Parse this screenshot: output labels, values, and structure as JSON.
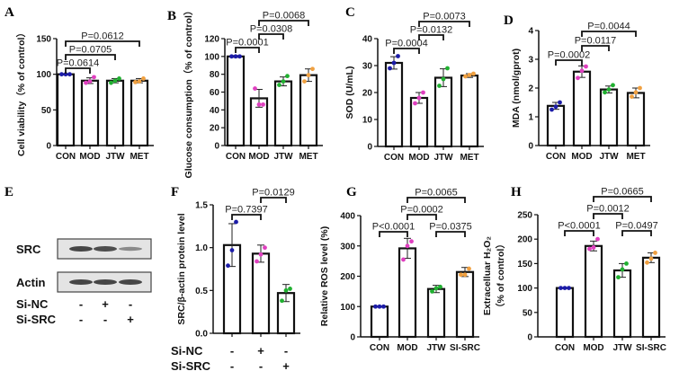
{
  "colors": {
    "CON": "#1c1ca8",
    "MOD": "#e040c0",
    "JTW": "#20b030",
    "MET": "#f0a040",
    "SI-SRC": "#f0a040",
    "bar_stroke": "#111111",
    "bar_fill": "#ffffff"
  },
  "blot": {
    "panel": "E",
    "rows": [
      "SRC",
      "Actin"
    ],
    "conditions": [
      {
        "label": "Si-NC",
        "values": [
          "-",
          "+",
          "-"
        ]
      },
      {
        "label": "Si-SRC",
        "values": [
          "-",
          "-",
          "+"
        ]
      }
    ],
    "band_intensity": {
      "SRC": [
        1.0,
        0.95,
        0.55
      ],
      "Actin": [
        1.0,
        1.0,
        1.0
      ]
    }
  },
  "chart_data": [
    {
      "panel": "A",
      "type": "bar",
      "categories": [
        "CON",
        "MOD",
        "JTW",
        "MET"
      ],
      "ylabel": "Cell viability（% of control）",
      "ylim": [
        0,
        150
      ],
      "yticks": [
        0,
        50,
        100,
        150
      ],
      "values": [
        100,
        91,
        91,
        91
      ],
      "sd": [
        1,
        4,
        3,
        3
      ],
      "points": [
        [
          100,
          100,
          100
        ],
        [
          88,
          90,
          96
        ],
        [
          88,
          91,
          94
        ],
        [
          89,
          90,
          94
        ]
      ],
      "brackets": [
        {
          "from": 0,
          "to": 1,
          "level": 0,
          "label": "P=0.0614"
        },
        {
          "from": 0,
          "to": 2,
          "level": 1,
          "label": "P=0.0705"
        },
        {
          "from": 0,
          "to": 3,
          "level": 2,
          "label": "P=0.0612"
        }
      ]
    },
    {
      "panel": "B",
      "type": "bar",
      "categories": [
        "CON",
        "MOD",
        "JTW",
        "MET"
      ],
      "ylabel": "Glucose consumption（% of control）",
      "ylim": [
        0,
        120
      ],
      "yticks": [
        0,
        20,
        40,
        60,
        80,
        100,
        120
      ],
      "values": [
        100,
        53,
        72,
        79
      ],
      "sd": [
        1,
        10,
        5,
        7
      ],
      "points": [
        [
          100,
          100,
          100
        ],
        [
          64,
          46,
          46
        ],
        [
          68,
          72,
          78
        ],
        [
          72,
          79,
          86
        ]
      ],
      "brackets": [
        {
          "from": 0,
          "to": 1,
          "level": 0,
          "label": "P=0.0001"
        },
        {
          "from": 1,
          "to": 2,
          "level": 1,
          "label": "P=0.0308"
        },
        {
          "from": 1,
          "to": 3,
          "level": 2,
          "label": "P=0.0068"
        }
      ]
    },
    {
      "panel": "C",
      "type": "bar",
      "categories": [
        "CON",
        "MOD",
        "JTW",
        "MET"
      ],
      "ylabel": "SOD (U/mL)",
      "ylim": [
        0,
        40
      ],
      "yticks": [
        0,
        10,
        20,
        30,
        40
      ],
      "values": [
        31,
        18,
        25.5,
        26.3
      ],
      "sd": [
        2.3,
        2,
        3.3,
        0.7
      ],
      "points": [
        [
          29,
          31,
          33.5
        ],
        [
          16,
          18,
          20
        ],
        [
          22.5,
          25,
          29
        ],
        [
          26,
          26.5,
          27
        ]
      ],
      "brackets": [
        {
          "from": 0,
          "to": 1,
          "level": 0,
          "label": "P=0.0004"
        },
        {
          "from": 1,
          "to": 2,
          "level": 1,
          "label": "P=0.0132"
        },
        {
          "from": 1,
          "to": 3,
          "level": 2,
          "label": "P=0.0073"
        }
      ]
    },
    {
      "panel": "D",
      "type": "bar",
      "categories": [
        "CON",
        "MOD",
        "JTW",
        "MET"
      ],
      "ylabel": "MDA (nmol/gprot)",
      "ylim": [
        0,
        4
      ],
      "yticks": [
        0,
        1,
        2,
        3,
        4
      ],
      "values": [
        1.38,
        2.57,
        1.95,
        1.83
      ],
      "sd": [
        0.12,
        0.2,
        0.12,
        0.17
      ],
      "points": [
        [
          1.25,
          1.35,
          1.5
        ],
        [
          2.35,
          2.6,
          2.75
        ],
        [
          1.85,
          1.95,
          2.1
        ],
        [
          1.7,
          1.85,
          2.0
        ]
      ],
      "brackets": [
        {
          "from": 0,
          "to": 1,
          "level": 0,
          "label": "P=0.0002"
        },
        {
          "from": 1,
          "to": 2,
          "level": 1,
          "label": "P=0.0117"
        },
        {
          "from": 1,
          "to": 3,
          "level": 2,
          "label": "P=0.0044"
        }
      ]
    },
    {
      "panel": "F",
      "type": "bar",
      "categories": [
        "",
        "",
        ""
      ],
      "ylabel": "SRC/β-actin protein level",
      "ylim": [
        0,
        1.5
      ],
      "yticks": [
        0,
        0.5,
        1.0,
        1.5
      ],
      "ytick_labels": [
        "0.0",
        "0.5",
        "1.0",
        "1.5"
      ],
      "values": [
        1.03,
        0.93,
        0.47
      ],
      "sd": [
        0.25,
        0.1,
        0.1
      ],
      "points": [
        [
          0.79,
          0.97,
          1.3
        ],
        [
          0.84,
          0.92,
          1.0
        ],
        [
          0.38,
          0.5,
          0.52
        ]
      ],
      "point_colors": [
        "CON",
        "MOD",
        "JTW"
      ],
      "conditions": [
        {
          "label": "Si-NC",
          "values": [
            "-",
            "+",
            "-"
          ]
        },
        {
          "label": "Si-SRC",
          "values": [
            "-",
            "-",
            "+"
          ]
        }
      ],
      "brackets": [
        {
          "from": 0,
          "to": 1,
          "level": 0,
          "label": "P=0.7397"
        },
        {
          "from": 1,
          "to": 2,
          "level": 1,
          "label": "P=0.0129"
        }
      ]
    },
    {
      "panel": "G",
      "type": "bar",
      "categories": [
        "CON",
        "MOD",
        "JTW",
        "SI-SRC"
      ],
      "ylabel": "Relative ROS level (%)",
      "ylim": [
        0,
        400
      ],
      "yticks": [
        0,
        100,
        200,
        300,
        400
      ],
      "values": [
        100,
        292,
        158,
        214
      ],
      "sd": [
        1,
        33,
        12,
        15
      ],
      "points": [
        [
          100,
          100,
          100
        ],
        [
          255,
          300,
          315
        ],
        [
          150,
          160,
          165
        ],
        [
          205,
          205,
          225
        ]
      ],
      "brackets": [
        {
          "from": 0,
          "to": 1,
          "level": 0,
          "label": "P<0.0001"
        },
        {
          "from": 2,
          "to": 3,
          "level": 0,
          "label": "P=0.0375"
        },
        {
          "from": 1,
          "to": 2,
          "level": 1,
          "label": "P=0.0002"
        },
        {
          "from": 1,
          "to": 3,
          "level": 2,
          "label": "P=0.0065"
        }
      ]
    },
    {
      "panel": "H",
      "type": "bar",
      "categories": [
        "CON",
        "MOD",
        "JTW",
        "SI-SRC"
      ],
      "ylabel": "Extracelluar H₂O₂",
      "ylabel2": "（% of control）",
      "ylim": [
        0,
        250
      ],
      "yticks": [
        0,
        50,
        100,
        150,
        200,
        250
      ],
      "values": [
        100,
        186,
        136,
        162
      ],
      "sd": [
        1,
        10,
        14,
        10
      ],
      "points": [
        [
          100,
          100,
          100
        ],
        [
          180,
          183,
          200
        ],
        [
          122,
          138,
          150
        ],
        [
          152,
          160,
          172
        ]
      ],
      "brackets": [
        {
          "from": 0,
          "to": 1,
          "level": 0,
          "label": "P<0.0001"
        },
        {
          "from": 2,
          "to": 3,
          "level": 0,
          "label": "P=0.0497"
        },
        {
          "from": 1,
          "to": 2,
          "level": 1,
          "label": "P=0.0012"
        },
        {
          "from": 1,
          "to": 3,
          "level": 2,
          "label": "P=0.0665"
        }
      ]
    }
  ]
}
